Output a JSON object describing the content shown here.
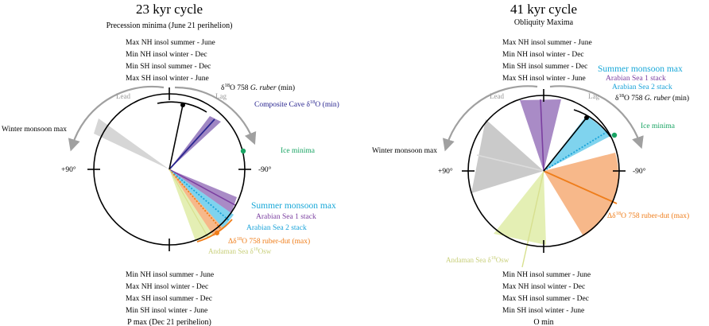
{
  "left_panel": {
    "title": "23 kyr cycle",
    "subtitle": "Precession minima (June 21 perihelion)",
    "top_labels": [
      "Max NH insol summer - June",
      "Min NH insol winter - Dec",
      "Min SH insol summer - Dec",
      "Max SH insol winter - June"
    ],
    "bottom_labels": [
      "Min NH insol summer - June",
      "Max NH insol winter - Dec",
      "Max SH insol summer - Dec",
      "Min SH insol winter - June"
    ],
    "bottom_title": "P max (Dec 21 perihelion)",
    "lead": "Lead",
    "lag": "Lag",
    "winter_monsoon": "Winter monsoon max",
    "plus90": "+90°",
    "minus90": "-90°",
    "g_ruber_min": "δ18O 758 G. ruber (min)",
    "cave": "Composite Cave δ18O (min)",
    "ice_minima": "Ice minima",
    "summer_monsoon": "Summer monsoon max",
    "arabian1": "Arabian Sea 1 stack",
    "arabian2": "Arabian Sea 2 stack",
    "ruber_dut": "Δδ18O 758 ruber-dut (max)",
    "andaman": "Andaman Sea δ18Osw"
  },
  "right_panel": {
    "title": "41 kyr cycle",
    "subtitle": "Obliquity Maxima",
    "top_labels": [
      "Max NH insol summer - June",
      "Min NH insol winter - Dec",
      "Min SH insol summer - Dec",
      "Max SH insol winter - June"
    ],
    "bottom_labels": [
      "Min NH insol summer - June",
      "Max NH insol winter - Dec",
      "Max SH insol summer - Dec",
      "Min SH insol winter - June"
    ],
    "bottom_title": "O min",
    "lead": "Lead",
    "lag": "Lag",
    "winter_monsoon": "Winter monsoon max",
    "plus90": "+90°",
    "minus90": "-90°",
    "summer_monsoon": "Summer monsoon max",
    "arabian1": "Arabian Sea 1 stack",
    "arabian2": "Arabian Sea 2 stack",
    "g_ruber_min": "δ18O 758 G. ruber (min)",
    "ice_minima": "Ice minima",
    "ruber_dut": "Δδ18O 758 ruber-dut (max)",
    "andaman": "Andaman Sea δ18Osw"
  },
  "colors": {
    "purple": "#7b3fa0",
    "purple_fill": "#a98bc6",
    "blue_fill": "#7fd3ee",
    "blue_line": "#1aa3d9",
    "orange": "#ef7d1a",
    "orange_fill": "#f7b88a",
    "green_light": "#e4efb4",
    "gray": "#bdbdbd",
    "navy": "#2a2690",
    "teal": "#19a463",
    "cyan_title": "#19a8d8",
    "andaman_text": "#c8cf7a"
  }
}
